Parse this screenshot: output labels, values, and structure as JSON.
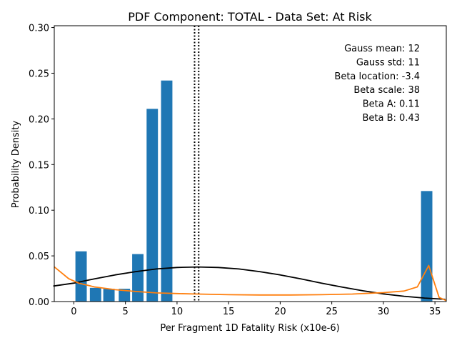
{
  "chart_data": {
    "type": "bar",
    "title": "PDF Component: TOTAL - Data Set: At Risk",
    "xlabel": "Per Fragment 1D Fatality Risk (x10e-6)",
    "ylabel": "Probability Density",
    "xlim": [
      -1.9,
      36.1
    ],
    "ylim": [
      0,
      0.302
    ],
    "x_ticks": [
      0,
      5,
      10,
      15,
      20,
      25,
      30,
      35
    ],
    "y_ticks": [
      0.0,
      0.05,
      0.1,
      0.15,
      0.2,
      0.25,
      0.3
    ],
    "x_tick_labels": [
      "0",
      "5",
      "10",
      "15",
      "20",
      "25",
      "30",
      "35"
    ],
    "y_tick_labels": [
      "0.00",
      "0.05",
      "0.10",
      "0.15",
      "0.20",
      "0.25",
      "0.30"
    ],
    "grid": false,
    "bars": {
      "color": "#1f77b4",
      "width": 1.1,
      "x": [
        0.7,
        2.1,
        3.4,
        4.9,
        6.2,
        7.6,
        9.0,
        34.2
      ],
      "values": [
        0.055,
        0.015,
        0.014,
        0.014,
        0.052,
        0.211,
        0.242,
        0.121
      ]
    },
    "vlines": {
      "color": "#000000",
      "style": "dotted",
      "x": [
        11.7,
        12.1
      ]
    },
    "series": [
      {
        "color": "#000000",
        "kind": "gauss",
        "x": [
          -2,
          0,
          2,
          4,
          6,
          8,
          10,
          12,
          14,
          16,
          18,
          20,
          22,
          24,
          26,
          28,
          30,
          32,
          34,
          36
        ],
        "values": [
          0.017,
          0.0202,
          0.0249,
          0.0292,
          0.0328,
          0.0357,
          0.0373,
          0.0379,
          0.0373,
          0.0357,
          0.0328,
          0.0292,
          0.0249,
          0.0202,
          0.0158,
          0.0118,
          0.0084,
          0.0058,
          0.0038,
          0.0024
        ]
      },
      {
        "color": "#ff7f0e",
        "kind": "beta",
        "x": [
          -1.9,
          -0.5,
          0.5,
          2,
          4,
          6,
          8,
          10,
          12,
          15,
          18,
          21,
          24,
          27,
          30,
          32,
          33.3,
          34.4,
          35.4,
          36.1
        ],
        "values": [
          0.038,
          0.025,
          0.02,
          0.016,
          0.013,
          0.011,
          0.0095,
          0.0088,
          0.0082,
          0.0075,
          0.0072,
          0.0072,
          0.0075,
          0.0082,
          0.0098,
          0.0115,
          0.016,
          0.0395,
          0.0045,
          0.001
        ]
      }
    ],
    "annotations": [
      "Gauss mean: 12",
      "Gauss std: 11",
      "Beta location: -3.4",
      "Beta scale: 38",
      "Beta A: 0.11",
      "Beta B: 0.43"
    ]
  }
}
